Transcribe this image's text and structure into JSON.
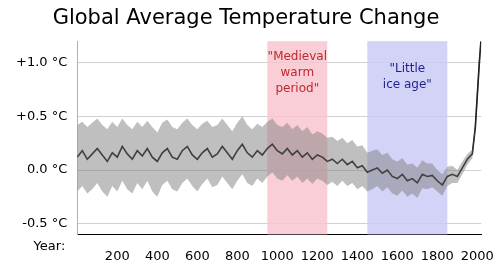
{
  "chart_data": {
    "type": "line",
    "title": "Global Average Temperature Change",
    "xlabel": "Year:",
    "x": [
      0,
      25,
      50,
      75,
      100,
      125,
      150,
      175,
      200,
      225,
      250,
      275,
      300,
      325,
      350,
      375,
      400,
      425,
      450,
      475,
      500,
      525,
      550,
      575,
      600,
      625,
      650,
      675,
      700,
      725,
      750,
      775,
      800,
      825,
      850,
      875,
      900,
      925,
      950,
      975,
      1000,
      1025,
      1050,
      1075,
      1100,
      1125,
      1150,
      1175,
      1200,
      1225,
      1250,
      1275,
      1300,
      1325,
      1350,
      1375,
      1400,
      1425,
      1450,
      1475,
      1500,
      1525,
      1550,
      1575,
      1600,
      1625,
      1650,
      1675,
      1700,
      1725,
      1750,
      1775,
      1800,
      1825,
      1850,
      1875,
      1900,
      1925,
      1950,
      1975,
      1990,
      2000,
      2010,
      2018
    ],
    "series": [
      {
        "color": "#000000",
        "values": [
          0.12,
          0.18,
          0.1,
          0.15,
          0.2,
          0.14,
          0.08,
          0.16,
          0.12,
          0.22,
          0.15,
          0.1,
          0.18,
          0.13,
          0.2,
          0.12,
          0.08,
          0.16,
          0.2,
          0.12,
          0.1,
          0.18,
          0.22,
          0.14,
          0.1,
          0.16,
          0.2,
          0.12,
          0.15,
          0.22,
          0.16,
          0.1,
          0.18,
          0.24,
          0.16,
          0.12,
          0.18,
          0.14,
          0.2,
          0.24,
          0.18,
          0.15,
          0.2,
          0.14,
          0.18,
          0.12,
          0.16,
          0.1,
          0.14,
          0.12,
          0.08,
          0.1,
          0.06,
          0.1,
          0.05,
          0.08,
          0.02,
          0.04,
          -0.02,
          0.0,
          0.02,
          -0.03,
          0.0,
          -0.06,
          -0.08,
          -0.04,
          -0.1,
          -0.08,
          -0.12,
          -0.04,
          -0.06,
          -0.05,
          -0.1,
          -0.14,
          -0.06,
          -0.04,
          -0.06,
          0.02,
          0.1,
          0.15,
          0.4,
          0.7,
          1.0,
          1.2
        ],
        "lower": [
          -0.2,
          -0.15,
          -0.22,
          -0.18,
          -0.12,
          -0.2,
          -0.25,
          -0.15,
          -0.2,
          -0.1,
          -0.18,
          -0.22,
          -0.12,
          -0.18,
          -0.1,
          -0.2,
          -0.25,
          -0.14,
          -0.1,
          -0.18,
          -0.2,
          -0.12,
          -0.08,
          -0.15,
          -0.2,
          -0.13,
          -0.08,
          -0.16,
          -0.14,
          -0.06,
          -0.12,
          -0.18,
          -0.1,
          -0.04,
          -0.12,
          -0.15,
          -0.08,
          -0.12,
          -0.06,
          -0.02,
          -0.08,
          -0.1,
          -0.05,
          -0.1,
          -0.06,
          -0.12,
          -0.08,
          -0.13,
          -0.08,
          -0.1,
          -0.14,
          -0.11,
          -0.15,
          -0.1,
          -0.15,
          -0.12,
          -0.18,
          -0.15,
          -0.2,
          -0.18,
          -0.15,
          -0.2,
          -0.16,
          -0.22,
          -0.24,
          -0.19,
          -0.25,
          -0.22,
          -0.26,
          -0.17,
          -0.18,
          -0.16,
          -0.2,
          -0.24,
          -0.15,
          -0.12,
          -0.12,
          -0.04,
          0.05,
          0.11,
          0.36,
          0.66,
          0.96,
          1.16
        ],
        "upper": [
          0.42,
          0.45,
          0.4,
          0.44,
          0.48,
          0.42,
          0.38,
          0.45,
          0.4,
          0.48,
          0.42,
          0.38,
          0.45,
          0.4,
          0.46,
          0.4,
          0.35,
          0.44,
          0.47,
          0.4,
          0.38,
          0.44,
          0.48,
          0.42,
          0.38,
          0.43,
          0.46,
          0.4,
          0.42,
          0.48,
          0.42,
          0.36,
          0.44,
          0.5,
          0.42,
          0.38,
          0.43,
          0.4,
          0.45,
          0.48,
          0.42,
          0.4,
          0.44,
          0.38,
          0.42,
          0.36,
          0.4,
          0.33,
          0.36,
          0.34,
          0.3,
          0.31,
          0.27,
          0.3,
          0.25,
          0.28,
          0.22,
          0.23,
          0.16,
          0.18,
          0.19,
          0.14,
          0.16,
          0.1,
          0.08,
          0.11,
          0.05,
          0.06,
          0.02,
          0.09,
          0.06,
          0.06,
          0.0,
          -0.04,
          0.03,
          0.04,
          0.0,
          0.08,
          0.15,
          0.19,
          0.44,
          0.74,
          1.04,
          1.24
        ]
      }
    ],
    "regions": [
      {
        "label": [
          "\"Medieval",
          "warm",
          "period\""
        ],
        "start": 950,
        "end": 1250,
        "color": "#f9c6d0",
        "label_color": "#c0282d"
      },
      {
        "label": [
          "\"Little",
          "ice age\""
        ],
        "start": 1450,
        "end": 1850,
        "color": "#cbcbf7",
        "label_color": "#1f1f8f"
      }
    ],
    "xlim": [
      0,
      2020
    ],
    "xticks": [
      200,
      400,
      600,
      800,
      1000,
      1200,
      1400,
      1600,
      1800,
      2000
    ],
    "ylim": [
      -0.6,
      1.2
    ],
    "yticks": [
      {
        "value": -0.5,
        "label": "-0.5 °C"
      },
      {
        "value": 0,
        "label": "0.0 °C"
      },
      {
        "value": 0.5,
        "label": "+0.5 °C"
      },
      {
        "value": 1,
        "label": "+1.0 °C"
      }
    ],
    "grid": true
  }
}
